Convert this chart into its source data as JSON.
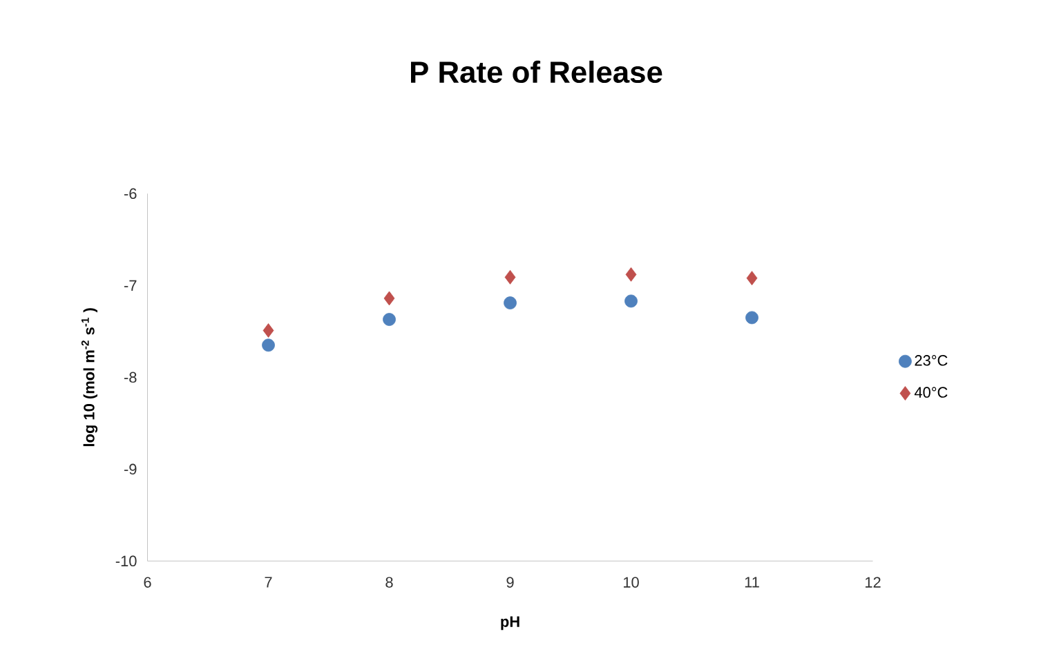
{
  "chart_data": {
    "type": "scatter",
    "title": "P Rate of Release",
    "xlabel": "pH",
    "ylabel": "log 10 (mol m$^{-2}$ s$^{-1}$ )",
    "x": [
      7,
      8,
      9,
      10,
      11
    ],
    "series": [
      {
        "name": "23°C",
        "color": "#4f81bd",
        "marker": "circle",
        "values": [
          -7.65,
          -7.37,
          -7.19,
          -7.17,
          -7.35
        ]
      },
      {
        "name": "40°C",
        "color": "#c0504d",
        "marker": "diamond",
        "values": [
          -7.49,
          -7.14,
          -6.91,
          -6.88,
          -6.92
        ]
      }
    ],
    "xlim": [
      6,
      12
    ],
    "xticks": [
      6,
      7,
      8,
      9,
      10,
      11,
      12
    ],
    "ylim": [
      -10,
      -6
    ],
    "yticks": [
      -10,
      -9,
      -8,
      -7,
      -6
    ],
    "grid": false,
    "legend": "right"
  }
}
